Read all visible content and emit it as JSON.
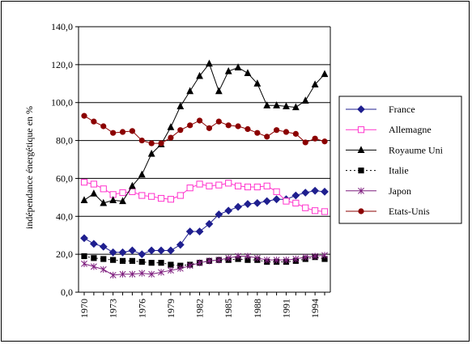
{
  "chart_data": {
    "type": "line",
    "ylabel": "indépendance énergétique en %",
    "xlabel": "",
    "ylim": [
      0,
      140
    ],
    "yticks": [
      "0,0",
      "20,0",
      "40,0",
      "60,0",
      "80,0",
      "100,0",
      "120,0",
      "140,0"
    ],
    "xlim": [
      1970,
      1995
    ],
    "xticks": [
      "1970",
      "1973",
      "1976",
      "1979",
      "1982",
      "1985",
      "1988",
      "1991",
      "1994"
    ],
    "grid": "horizontal",
    "legend_position": "right",
    "x": [
      1970,
      1971,
      1972,
      1973,
      1974,
      1975,
      1976,
      1977,
      1978,
      1979,
      1980,
      1981,
      1982,
      1983,
      1984,
      1985,
      1986,
      1987,
      1988,
      1989,
      1990,
      1991,
      1992,
      1993,
      1994,
      1995
    ],
    "series": [
      {
        "name": "France",
        "color": "#1f1f8f",
        "marker": "diamond",
        "values": [
          28.5,
          25.5,
          24,
          21,
          21,
          22,
          20,
          22,
          22,
          22,
          25,
          32,
          32,
          36,
          41,
          43,
          45,
          46.5,
          47,
          48,
          49,
          49,
          51,
          52.5,
          53.5,
          53
        ]
      },
      {
        "name": "Allemagne",
        "color": "#ff33cc",
        "marker": "open-square",
        "values": [
          58,
          57,
          54.5,
          51.5,
          52.5,
          53,
          51,
          50.5,
          49.5,
          49,
          51,
          55,
          57,
          56,
          56.5,
          57.5,
          56,
          55.5,
          55.5,
          56,
          53,
          48,
          47,
          44.5,
          43,
          42.5
        ]
      },
      {
        "name": "Royaume Uni",
        "color": "#000000",
        "marker": "triangle",
        "values": [
          48.5,
          52,
          47,
          48.5,
          48,
          56,
          62,
          73,
          78,
          87,
          98,
          106,
          114,
          120.5,
          106,
          116.5,
          118.5,
          115.5,
          110,
          98.5,
          98.5,
          98,
          97.5,
          101,
          109.5,
          115
        ]
      },
      {
        "name": "Italie",
        "color": "#000000",
        "marker": "filled-square",
        "values": [
          19,
          18,
          17.5,
          17,
          16.5,
          16.5,
          16,
          15.5,
          15.5,
          14.5,
          14,
          14.5,
          15.5,
          16.5,
          17,
          17,
          17.5,
          17,
          17,
          16,
          16,
          16,
          16.5,
          17.5,
          18.5,
          17.5
        ]
      },
      {
        "name": "Japon",
        "color": "#7f1f7f",
        "marker": "star",
        "values": [
          15,
          13.5,
          12,
          9,
          9.5,
          9.5,
          10,
          9.5,
          10.5,
          11.5,
          12.5,
          14,
          15.5,
          16.5,
          17,
          18,
          19,
          19,
          18,
          17,
          17,
          17,
          17.5,
          18.5,
          19,
          19.5
        ]
      },
      {
        "name": "Etats-Unis",
        "color": "#8b0000",
        "marker": "filled-circle",
        "values": [
          93,
          90,
          87.5,
          84,
          84.5,
          85,
          80,
          78.5,
          78.5,
          81.5,
          85.5,
          88,
          90.5,
          86.5,
          90,
          88,
          87.5,
          86,
          84,
          82,
          85.5,
          84.5,
          83.5,
          79,
          81,
          79.5
        ]
      }
    ]
  }
}
